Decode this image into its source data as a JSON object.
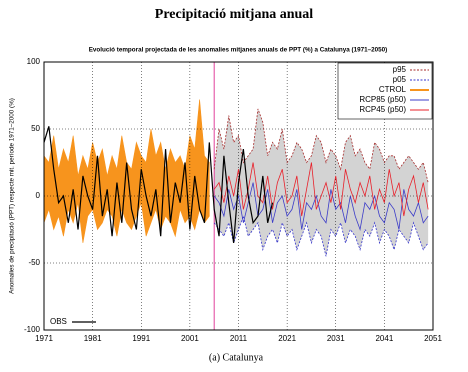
{
  "header": {
    "title": "Precipitació mitjana anual"
  },
  "chart_data": {
    "type": "line",
    "title": "Evolució temporal projectada de les anomalies mitjanes anuals de PPT (%) a Catalunya (1971–2050)",
    "y_label": "Anomalies de precipitació (PPT) respecte mit. període 1971–2000 (%)",
    "caption": "(a) Catalunya",
    "xlim": [
      1971,
      2051
    ],
    "xticks": [
      1971,
      1981,
      1991,
      2001,
      2011,
      2021,
      2031,
      2041,
      2051
    ],
    "ylim": [
      -100,
      100
    ],
    "yticks": [
      -100,
      -50,
      0,
      50,
      100
    ],
    "grid": true,
    "legend": "upper right",
    "vline": 2006,
    "vline_color": "#e0409a",
    "band_fill": "#d3d3d3",
    "series": [
      {
        "name": "p95",
        "color": "#a52a2a",
        "style": "dashed",
        "x": [
          2006,
          2007,
          2008,
          2009,
          2010,
          2011,
          2012,
          2013,
          2014,
          2015,
          2016,
          2017,
          2018,
          2019,
          2020,
          2021,
          2022,
          2023,
          2024,
          2025,
          2026,
          2027,
          2028,
          2029,
          2030,
          2031,
          2032,
          2033,
          2034,
          2035,
          2036,
          2037,
          2038,
          2039,
          2040,
          2041,
          2042,
          2043,
          2044,
          2045,
          2046,
          2047,
          2048,
          2049,
          2050
        ],
        "values": [
          20,
          50,
          35,
          60,
          40,
          45,
          25,
          30,
          35,
          65,
          55,
          30,
          40,
          35,
          50,
          25,
          30,
          40,
          35,
          25,
          30,
          45,
          40,
          25,
          35,
          30,
          20,
          40,
          45,
          30,
          35,
          25,
          20,
          40,
          35,
          25,
          30,
          30,
          20,
          25,
          30,
          25,
          20,
          25,
          10
        ]
      },
      {
        "name": "p05",
        "color": "#3333cc",
        "style": "dashed",
        "x": [
          2006,
          2007,
          2008,
          2009,
          2010,
          2011,
          2012,
          2013,
          2014,
          2015,
          2016,
          2017,
          2018,
          2019,
          2020,
          2021,
          2022,
          2023,
          2024,
          2025,
          2026,
          2027,
          2028,
          2029,
          2030,
          2031,
          2032,
          2033,
          2034,
          2035,
          2036,
          2037,
          2038,
          2039,
          2040,
          2041,
          2042,
          2043,
          2044,
          2045,
          2046,
          2047,
          2048,
          2049,
          2050
        ],
        "values": [
          -20,
          -25,
          -30,
          -20,
          -35,
          -25,
          -15,
          -30,
          -25,
          -20,
          -40,
          -30,
          -25,
          -35,
          -20,
          -30,
          -25,
          -40,
          -30,
          -20,
          -35,
          -25,
          -30,
          -45,
          -25,
          -30,
          -20,
          -35,
          -25,
          -30,
          -40,
          -25,
          -30,
          -20,
          -35,
          -25,
          -30,
          -40,
          -25,
          -30,
          -35,
          -20,
          -30,
          -40,
          -35
        ]
      },
      {
        "name": "CTROL",
        "color": "#f7941d",
        "x": [
          1971,
          1972,
          1973,
          1974,
          1975,
          1976,
          1977,
          1978,
          1979,
          1980,
          1981,
          1982,
          1983,
          1984,
          1985,
          1986,
          1987,
          1988,
          1989,
          1990,
          1991,
          1992,
          1993,
          1994,
          1995,
          1996,
          1997,
          1998,
          1999,
          2000,
          2001,
          2002,
          2003,
          2004,
          2005
        ],
        "upper": [
          30,
          25,
          45,
          20,
          35,
          25,
          45,
          15,
          30,
          20,
          40,
          25,
          35,
          15,
          30,
          20,
          45,
          25,
          20,
          40,
          30,
          25,
          50,
          30,
          40,
          20,
          35,
          25,
          30,
          20,
          45,
          35,
          72,
          30,
          25
        ],
        "lower": [
          -20,
          -10,
          -25,
          -15,
          -30,
          -10,
          -20,
          -5,
          -35,
          -15,
          -10,
          -25,
          -20,
          -10,
          -15,
          -30,
          -10,
          -20,
          -25,
          -15,
          -5,
          -30,
          -20,
          -10,
          -25,
          -15,
          -20,
          -30,
          -10,
          -20,
          -15,
          -25,
          -10,
          -20,
          -15
        ]
      },
      {
        "name": "RCP85 (p50)",
        "color": "#3c3cc8",
        "x": [
          2006,
          2007,
          2008,
          2009,
          2010,
          2011,
          2012,
          2013,
          2014,
          2015,
          2016,
          2017,
          2018,
          2019,
          2020,
          2021,
          2022,
          2023,
          2024,
          2025,
          2026,
          2027,
          2028,
          2029,
          2030,
          2031,
          2032,
          2033,
          2034,
          2035,
          2036,
          2037,
          2038,
          2039,
          2040,
          2041,
          2042,
          2043,
          2044,
          2045,
          2046,
          2047,
          2048,
          2049,
          2050
        ],
        "values": [
          0,
          -5,
          -15,
          5,
          -10,
          0,
          -20,
          -5,
          10,
          -15,
          -10,
          5,
          -20,
          -5,
          0,
          -15,
          -10,
          5,
          -25,
          -5,
          -10,
          0,
          -15,
          -20,
          5,
          -10,
          -5,
          -20,
          0,
          -15,
          -25,
          -5,
          -10,
          0,
          -15,
          -20,
          -5,
          -10,
          -25,
          5,
          -10,
          -15,
          -5,
          -20,
          -15
        ]
      },
      {
        "name": "RCP45 (p50)",
        "color": "#e8202a",
        "x": [
          2006,
          2007,
          2008,
          2009,
          2010,
          2011,
          2012,
          2013,
          2014,
          2015,
          2016,
          2017,
          2018,
          2019,
          2020,
          2021,
          2022,
          2023,
          2024,
          2025,
          2026,
          2027,
          2028,
          2029,
          2030,
          2031,
          2032,
          2033,
          2034,
          2035,
          2036,
          2037,
          2038,
          2039,
          2040,
          2041,
          2042,
          2043,
          2044,
          2045,
          2046,
          2047,
          2048,
          2049,
          2050
        ],
        "values": [
          5,
          10,
          -5,
          15,
          0,
          20,
          -10,
          5,
          25,
          0,
          -5,
          15,
          -10,
          10,
          20,
          -5,
          0,
          15,
          -15,
          5,
          25,
          -10,
          0,
          10,
          -5,
          15,
          -10,
          20,
          5,
          -5,
          10,
          0,
          15,
          -10,
          5,
          -5,
          20,
          0,
          10,
          -15,
          5,
          15,
          -5,
          10,
          -10
        ]
      },
      {
        "name": "OBS",
        "color": "#000000",
        "x": [
          1971,
          1972,
          1973,
          1974,
          1975,
          1976,
          1977,
          1978,
          1979,
          1980,
          1981,
          1982,
          1983,
          1984,
          1985,
          1986,
          1987,
          1988,
          1989,
          1990,
          1991,
          1992,
          1993,
          1994,
          1995,
          1996,
          1997,
          1998,
          1999,
          2000,
          2001,
          2002,
          2003,
          2004,
          2005,
          2006,
          2007,
          2008,
          2009,
          2010,
          2011,
          2012,
          2013,
          2014,
          2015,
          2016,
          2017,
          2018
        ],
        "values": [
          40,
          52,
          20,
          -5,
          0,
          -20,
          5,
          -25,
          15,
          0,
          -10,
          30,
          -15,
          5,
          -30,
          10,
          -20,
          25,
          -10,
          -25,
          20,
          0,
          -15,
          5,
          -30,
          35,
          -20,
          10,
          -5,
          25,
          -25,
          15,
          -10,
          -20,
          40,
          -10,
          -30,
          30,
          -5,
          -35,
          10,
          35,
          0,
          -20,
          -15,
          15,
          -20,
          -5
        ]
      }
    ]
  }
}
